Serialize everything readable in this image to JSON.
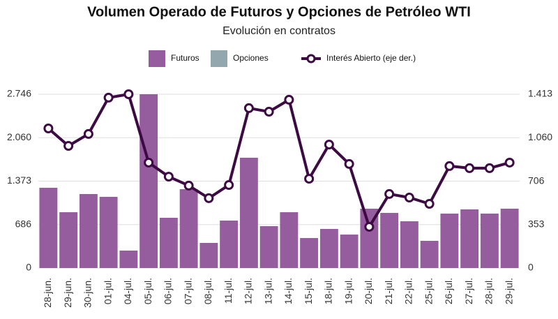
{
  "chart_data": {
    "type": "bar",
    "title": "Volumen Operado de Futuros y Opciones de Petróleo WTI",
    "subtitle": "Evolución en contratos",
    "categories": [
      "28-jun.",
      "29-jun.",
      "30-jun.",
      "01-jul.",
      "04-jul.",
      "05-jul.",
      "06-jul.",
      "07-jul.",
      "08-jul.",
      "11-jul.",
      "12-jul.",
      "13-jul.",
      "14-jul.",
      "15-jul.",
      "18-jul.",
      "19-jul.",
      "20-jul.",
      "21-jul.",
      "22-jul.",
      "25-jul.",
      "26-jul.",
      "27-jul.",
      "28-jul.",
      "29-jul."
    ],
    "series": [
      {
        "name": "Futuros",
        "color": "#955d9e",
        "values": [
          1268,
          882,
          1169,
          1125,
          276,
          2746,
          794,
          1246,
          397,
          750,
          1743,
          662,
          882,
          474,
          618,
          529,
          938,
          871,
          739,
          430,
          860,
          927,
          860,
          938
        ]
      },
      {
        "name": "Opciones",
        "color": "#93a7ae",
        "values": [
          0,
          0,
          0,
          0,
          0,
          0,
          0,
          0,
          0,
          0,
          0,
          0,
          0,
          0,
          0,
          0,
          0,
          0,
          0,
          0,
          0,
          0,
          0,
          0
        ]
      },
      {
        "name": "Interés Abierto (eje der.)",
        "color": "#3d0a43",
        "axis": "y2",
        "values": [
          1135,
          993,
          1090,
          1385,
          1413,
          857,
          743,
          670,
          568,
          675,
          1300,
          1271,
          1368,
          726,
          1004,
          846,
          335,
          602,
          573,
          522,
          829,
          812,
          812,
          857
        ]
      }
    ],
    "ylim": [
      0,
      2746
    ],
    "yticks": [
      0,
      686,
      {
        "value": 1373,
        "label": "1.373"
      },
      {
        "value": 2060,
        "label": "2.060"
      },
      {
        "value": 2746,
        "label": "2.746"
      }
    ],
    "y2lim": [
      0,
      1413
    ],
    "y2ticks": [
      0,
      353,
      706,
      {
        "value": 1060,
        "label": "1.060"
      },
      {
        "value": 1413,
        "label": "1.413"
      }
    ],
    "grid": true,
    "legend": "top"
  }
}
